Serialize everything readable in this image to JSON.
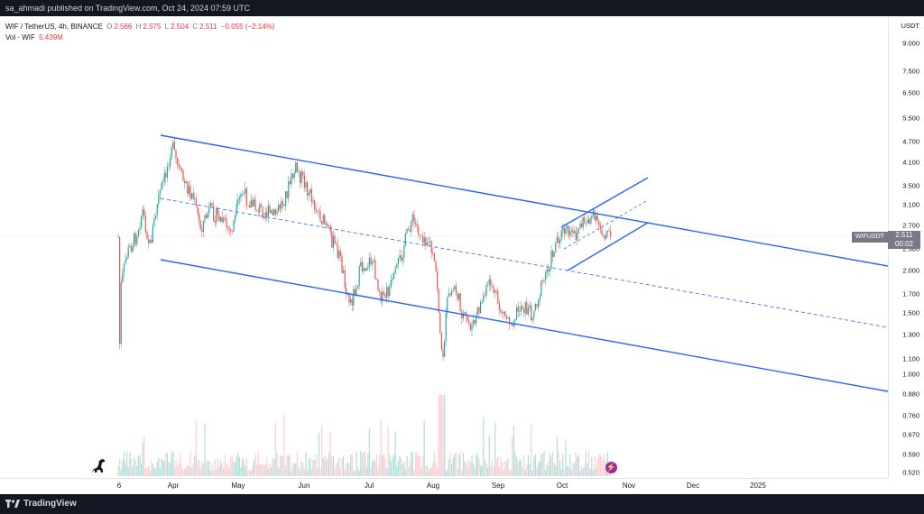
{
  "header": {
    "publish_line": "sa_ahmadi published on TradingView.com, Oct 24, 2024 07:59 UTC"
  },
  "legend": {
    "symbol_line": "WIF / TetherUS, 4h, BINANCE",
    "o_label": "O",
    "o_value": "2.566",
    "h_label": "H",
    "h_value": "2.575",
    "l_label": "L",
    "l_value": "2.504",
    "c_label": "C",
    "c_value": "2.511",
    "change": "−0.055 (−2.14%)",
    "vol_label": "Vol · WIF",
    "vol_value": "5.439M"
  },
  "price_axis": {
    "unit": "USDT",
    "ticks": [
      "9.000",
      "7.500",
      "6.500",
      "5.500",
      "4.700",
      "4.100",
      "3.500",
      "3.100",
      "2.700",
      "2.300",
      "2.000",
      "1.700",
      "1.500",
      "1.300",
      "1.100",
      "1.000",
      "0.880",
      "0.760",
      "0.670",
      "0.590",
      "0.520"
    ]
  },
  "time_axis": {
    "ticks": [
      "6",
      "Apr",
      "May",
      "Jun",
      "Jul",
      "Aug",
      "Sep",
      "Oct",
      "Nov",
      "Dec",
      "2025"
    ]
  },
  "last_price": {
    "symbol": "WIFUSDT",
    "price": "2.511",
    "countdown": "00:02"
  },
  "footer": {
    "brand": "TradingView"
  },
  "colors": {
    "up": "#26a69a",
    "down": "#ef5350",
    "drawing": "#2962ff",
    "background": "#ffffff",
    "frame": "#131722"
  },
  "icons": {
    "dino": "dinosaur-icon",
    "flash": "lightning-icon",
    "brand": "tradingview-logo-icon"
  }
}
